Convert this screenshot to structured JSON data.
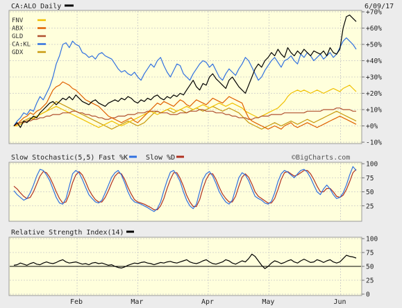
{
  "header": {
    "ticker_title": "CA:ALO Daily",
    "date": "6/09/17",
    "ticker_swatch_color": "#000000"
  },
  "watermark": "©BigCharts.com",
  "legend": [
    {
      "label": "FNV",
      "color": "#f0c000"
    },
    {
      "label": "ABX",
      "color": "#e06000"
    },
    {
      "label": "GLD",
      "color": "#b05030"
    },
    {
      "label": "CA:KL",
      "color": "#3070e0"
    },
    {
      "label": "GDX",
      "color": "#c89a10"
    }
  ],
  "x_axis": {
    "labels": [
      "Feb",
      "Mar",
      "Apr",
      "May",
      "Jun"
    ]
  },
  "stochastic": {
    "title": "Slow Stochastic(5,5)",
    "fast_label": "Fast %K",
    "slow_label": "Slow %D",
    "fast_color": "#3070e0",
    "slow_color": "#b03020"
  },
  "rsi": {
    "title": "Relative Strength Index(14)",
    "color": "#000000"
  },
  "chart_data": [
    {
      "type": "line",
      "ylabel": "",
      "ylim": [
        -10,
        70
      ],
      "yticks": [
        -10,
        0,
        10,
        20,
        30,
        40,
        50,
        60,
        70
      ],
      "ytick_labels": [
        "-10%",
        "+0%",
        "+10%",
        "+20%",
        "+30%",
        "+40%",
        "+50%",
        "+60%",
        "+70%"
      ],
      "grid": true,
      "legend_position": "top-left",
      "x_index_range": [
        0,
        105
      ],
      "series": [
        {
          "name": "CA:ALO",
          "color": "#000000",
          "values": [
            0,
            2,
            -1,
            3,
            2,
            4,
            6,
            5,
            8,
            10,
            12,
            14,
            15,
            13,
            15,
            17,
            16,
            18,
            16,
            19,
            17,
            15,
            14,
            13,
            15,
            16,
            14,
            13,
            12,
            14,
            15,
            16,
            15,
            17,
            16,
            18,
            17,
            15,
            14,
            16,
            15,
            17,
            16,
            18,
            19,
            17,
            16,
            18,
            17,
            19,
            18,
            20,
            19,
            22,
            25,
            28,
            24,
            22,
            26,
            25,
            30,
            32,
            29,
            27,
            25,
            23,
            28,
            30,
            27,
            24,
            22,
            20,
            25,
            30,
            35,
            38,
            36,
            40,
            42,
            45,
            43,
            47,
            44,
            42,
            48,
            45,
            43,
            46,
            44,
            47,
            45,
            43,
            46,
            45,
            44,
            46,
            43,
            48,
            45,
            44,
            47,
            60,
            67,
            68,
            66,
            64
          ]
        },
        {
          "name": "CA:KL",
          "color": "#3070e0",
          "values": [
            0,
            3,
            5,
            8,
            7,
            10,
            9,
            14,
            18,
            16,
            20,
            24,
            30,
            38,
            43,
            50,
            51,
            48,
            52,
            50,
            49,
            45,
            44,
            42,
            43,
            41,
            44,
            45,
            43,
            42,
            41,
            38,
            35,
            33,
            34,
            32,
            31,
            33,
            30,
            28,
            32,
            35,
            38,
            36,
            40,
            42,
            37,
            33,
            30,
            34,
            38,
            37,
            32,
            30,
            28,
            32,
            35,
            38,
            40,
            39,
            36,
            38,
            34,
            30,
            28,
            32,
            35,
            33,
            31,
            35,
            38,
            42,
            40,
            36,
            32,
            28,
            30,
            34,
            37,
            40,
            42,
            39,
            36,
            40,
            41,
            43,
            40,
            38,
            44,
            42,
            45,
            43,
            40,
            42,
            44,
            41,
            43,
            45,
            42,
            44,
            48,
            52,
            54,
            52,
            50,
            47
          ]
        },
        {
          "name": "ABX",
          "color": "#e06000",
          "values": [
            0,
            1,
            3,
            5,
            6,
            8,
            7,
            9,
            10,
            12,
            14,
            18,
            22,
            24,
            25,
            27,
            26,
            25,
            23,
            22,
            20,
            18,
            16,
            15,
            14,
            13,
            12,
            10,
            8,
            6,
            5,
            4,
            3,
            2,
            3,
            4,
            5,
            3,
            2,
            4,
            6,
            8,
            10,
            12,
            14,
            13,
            15,
            14,
            13,
            12,
            14,
            16,
            15,
            13,
            12,
            14,
            16,
            15,
            14,
            13,
            15,
            17,
            16,
            15,
            14,
            16,
            18,
            17,
            16,
            15,
            14,
            9,
            5,
            3,
            2,
            1,
            0,
            -1,
            -2,
            -1,
            0,
            -1,
            -2,
            0,
            1,
            2,
            0,
            -1,
            0,
            1,
            2,
            1,
            0,
            -1,
            0,
            1,
            2,
            3,
            4,
            5,
            6,
            5,
            4,
            3,
            2,
            1
          ]
        },
        {
          "name": "GLD",
          "color": "#b05030",
          "values": [
            0,
            1,
            2,
            2,
            3,
            3,
            4,
            4,
            5,
            5,
            6,
            6,
            7,
            7,
            7,
            8,
            8,
            8,
            9,
            9,
            8,
            8,
            7,
            7,
            6,
            6,
            5,
            5,
            4,
            4,
            5,
            5,
            6,
            6,
            6,
            7,
            7,
            7,
            8,
            8,
            8,
            9,
            9,
            9,
            9,
            8,
            8,
            8,
            7,
            7,
            7,
            8,
            8,
            8,
            9,
            9,
            9,
            10,
            10,
            9,
            9,
            9,
            8,
            8,
            8,
            7,
            7,
            6,
            6,
            5,
            5,
            5,
            4,
            4,
            5,
            5,
            6,
            6,
            6,
            7,
            7,
            7,
            7,
            8,
            8,
            8,
            8,
            8,
            8,
            8,
            9,
            9,
            9,
            9,
            9,
            10,
            10,
            10,
            10,
            11,
            11,
            10,
            10,
            10,
            9,
            9
          ]
        },
        {
          "name": "FNV",
          "color": "#f0c000",
          "values": [
            0,
            0,
            1,
            2,
            3,
            4,
            5,
            6,
            7,
            8,
            9,
            10,
            11,
            12,
            11,
            10,
            9,
            8,
            7,
            6,
            5,
            4,
            3,
            2,
            1,
            0,
            -1,
            0,
            1,
            2,
            3,
            2,
            1,
            0,
            1,
            2,
            3,
            4,
            5,
            6,
            7,
            8,
            9,
            8,
            7,
            8,
            9,
            10,
            11,
            10,
            9,
            10,
            11,
            12,
            11,
            10,
            11,
            12,
            13,
            12,
            11,
            12,
            13,
            14,
            13,
            12,
            13,
            14,
            13,
            12,
            11,
            9,
            8,
            7,
            6,
            5,
            6,
            7,
            8,
            9,
            10,
            11,
            13,
            15,
            18,
            20,
            21,
            22,
            21,
            22,
            21,
            20,
            21,
            22,
            21,
            20,
            21,
            22,
            23,
            22,
            21,
            23,
            24,
            25,
            23,
            21
          ]
        },
        {
          "name": "GDX",
          "color": "#c89a10",
          "values": [
            0,
            1,
            2,
            3,
            4,
            5,
            4,
            6,
            7,
            8,
            9,
            11,
            13,
            15,
            14,
            13,
            12,
            11,
            10,
            9,
            8,
            7,
            6,
            5,
            4,
            3,
            2,
            1,
            0,
            -1,
            -2,
            -1,
            0,
            1,
            2,
            3,
            2,
            1,
            0,
            1,
            2,
            4,
            6,
            8,
            9,
            8,
            9,
            10,
            9,
            8,
            9,
            10,
            9,
            8,
            9,
            10,
            11,
            10,
            9,
            10,
            11,
            12,
            11,
            10,
            9,
            10,
            11,
            10,
            9,
            8,
            6,
            4,
            2,
            1,
            0,
            -1,
            -2,
            -1,
            0,
            1,
            2,
            1,
            0,
            1,
            2,
            3,
            2,
            1,
            2,
            3,
            4,
            3,
            2,
            3,
            4,
            5,
            6,
            7,
            8,
            9,
            8,
            7,
            6,
            5,
            4,
            3
          ]
        }
      ]
    },
    {
      "type": "line",
      "title": "Slow Stochastic(5,5)",
      "ylim": [
        0,
        100
      ],
      "yticks": [
        25,
        50,
        75,
        100
      ],
      "ytick_labels": [
        "25",
        "50",
        "75",
        "100"
      ],
      "x_index_range": [
        0,
        105
      ],
      "series": [
        {
          "name": "Fast %K",
          "color": "#3070e0",
          "values": [
            52,
            45,
            40,
            35,
            38,
            48,
            62,
            78,
            90,
            88,
            80,
            70,
            55,
            40,
            30,
            28,
            38,
            60,
            82,
            88,
            84,
            72,
            58,
            45,
            38,
            32,
            30,
            35,
            48,
            62,
            76,
            84,
            88,
            80,
            66,
            50,
            38,
            32,
            30,
            28,
            25,
            22,
            18,
            15,
            20,
            32,
            52,
            70,
            85,
            88,
            80,
            68,
            50,
            35,
            25,
            20,
            28,
            50,
            72,
            82,
            86,
            78,
            65,
            50,
            40,
            32,
            28,
            35,
            55,
            75,
            84,
            80,
            70,
            55,
            42,
            38,
            35,
            30,
            28,
            33,
            48,
            68,
            82,
            88,
            85,
            80,
            75,
            82,
            88,
            90,
            85,
            75,
            62,
            50,
            45,
            55,
            62,
            55,
            45,
            38,
            40,
            48,
            62,
            80,
            95,
            88
          ]
        },
        {
          "name": "Slow %D",
          "color": "#b03020",
          "values": [
            60,
            55,
            48,
            42,
            38,
            40,
            50,
            64,
            78,
            86,
            84,
            76,
            64,
            50,
            38,
            30,
            32,
            46,
            66,
            80,
            86,
            80,
            68,
            54,
            44,
            36,
            32,
            32,
            40,
            52,
            66,
            78,
            84,
            82,
            72,
            58,
            46,
            36,
            32,
            30,
            28,
            25,
            22,
            18,
            18,
            25,
            38,
            56,
            72,
            84,
            84,
            74,
            60,
            44,
            32,
            24,
            24,
            36,
            56,
            72,
            82,
            82,
            72,
            58,
            46,
            38,
            32,
            32,
            42,
            60,
            76,
            82,
            76,
            64,
            50,
            42,
            38,
            34,
            30,
            30,
            38,
            54,
            72,
            84,
            86,
            82,
            78,
            80,
            84,
            88,
            88,
            82,
            72,
            60,
            50,
            50,
            56,
            56,
            50,
            42,
            40,
            44,
            54,
            68,
            84,
            90
          ]
        }
      ]
    },
    {
      "type": "line",
      "title": "Relative Strength Index(14)",
      "ylim": [
        0,
        100
      ],
      "yticks": [
        0,
        25,
        50,
        75,
        100
      ],
      "ytick_labels": [
        "0",
        "25",
        "50",
        "75",
        "100"
      ],
      "reference_line": 50,
      "x_index_range": [
        0,
        105
      ],
      "series": [
        {
          "name": "RSI(14)",
          "color": "#000000",
          "values": [
            52,
            53,
            56,
            54,
            52,
            55,
            57,
            54,
            53,
            56,
            58,
            56,
            55,
            57,
            60,
            62,
            58,
            56,
            57,
            58,
            56,
            54,
            55,
            53,
            56,
            57,
            55,
            56,
            54,
            52,
            53,
            50,
            48,
            47,
            49,
            52,
            54,
            56,
            55,
            57,
            58,
            56,
            55,
            53,
            55,
            57,
            56,
            58,
            59,
            57,
            56,
            58,
            60,
            62,
            58,
            56,
            55,
            57,
            60,
            62,
            58,
            55,
            54,
            56,
            58,
            62,
            60,
            56,
            54,
            57,
            60,
            58,
            64,
            72,
            68,
            60,
            52,
            46,
            50,
            56,
            60,
            58,
            55,
            57,
            60,
            62,
            58,
            56,
            60,
            63,
            60,
            57,
            58,
            62,
            60,
            57,
            60,
            62,
            58,
            56,
            58,
            64,
            70,
            68,
            67,
            65
          ]
        }
      ]
    }
  ]
}
